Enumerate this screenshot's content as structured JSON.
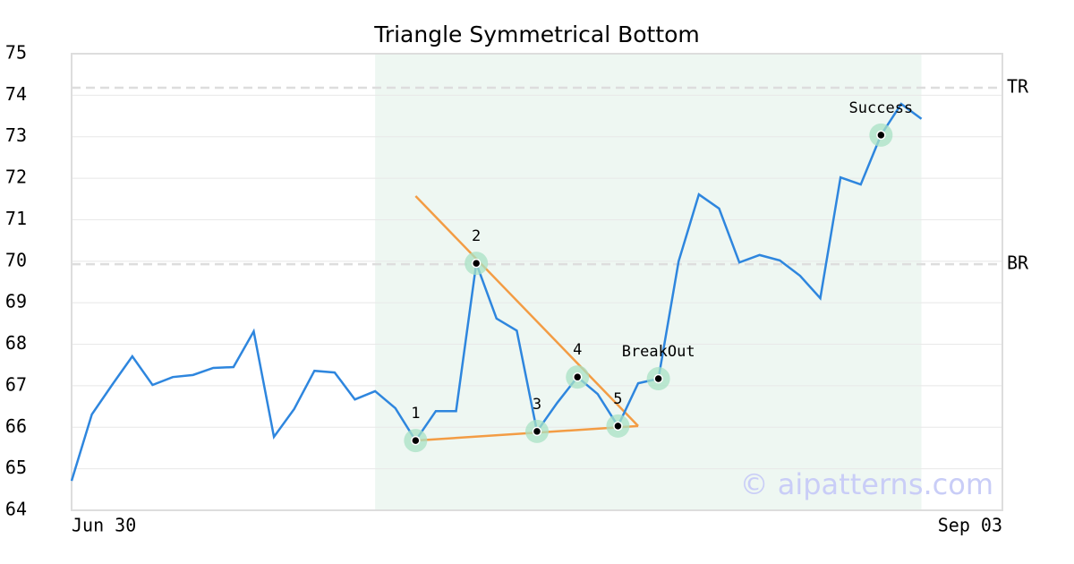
{
  "chart_data": {
    "type": "line",
    "title": "Triangle Symmetrical Bottom",
    "x": [
      0,
      1,
      2,
      3,
      4,
      5,
      6,
      7,
      8,
      9,
      10,
      11,
      12,
      13,
      14,
      15,
      16,
      17,
      18,
      19,
      20,
      21,
      22,
      23,
      24,
      25,
      26,
      27,
      28,
      29,
      30,
      31,
      32,
      33,
      34,
      35,
      36,
      37,
      38,
      39,
      40,
      41,
      42
    ],
    "values": [
      64.71,
      66.31,
      67.02,
      67.71,
      67.02,
      67.21,
      67.26,
      67.43,
      67.45,
      68.31,
      65.77,
      66.44,
      67.36,
      67.32,
      66.67,
      66.87,
      66.46,
      65.68,
      66.39,
      66.39,
      69.95,
      68.62,
      68.33,
      65.9,
      66.59,
      67.21,
      66.8,
      66.03,
      67.06,
      67.17,
      70.0,
      71.61,
      71.27,
      69.97,
      70.15,
      70.02,
      69.65,
      69.11,
      72.02,
      71.85,
      73.04,
      73.79,
      73.43
    ],
    "color": "#2e86de",
    "xlim": [
      0,
      46
    ],
    "xticks": [
      {
        "value": 0,
        "label": "Jun 30"
      },
      {
        "value": 46,
        "label": "Sep 03"
      }
    ],
    "ylim": [
      64,
      75
    ],
    "yticks": [
      64,
      65,
      66,
      67,
      68,
      69,
      70,
      71,
      72,
      73,
      74,
      75
    ],
    "grid": true,
    "highlight_range": [
      15,
      42
    ],
    "highlight_color": "#eef7f2",
    "levels": [
      {
        "label": "TR",
        "value": 74.18
      },
      {
        "label": "BR",
        "value": 69.93
      }
    ],
    "trendlines": [
      {
        "x": [
          17,
          28
        ],
        "y": [
          71.57,
          66.03
        ],
        "color": "#f39c44"
      },
      {
        "x": [
          17,
          28
        ],
        "y": [
          65.68,
          66.03
        ],
        "color": "#f39c44"
      }
    ],
    "markers": [
      {
        "label": "1",
        "x": 17
      },
      {
        "label": "2",
        "x": 20
      },
      {
        "label": "3",
        "x": 23
      },
      {
        "label": "4",
        "x": 25
      },
      {
        "label": "5",
        "x": 27
      },
      {
        "label": "BreakOut",
        "x": 29
      },
      {
        "label": "Success",
        "x": 40
      }
    ],
    "watermark": "© aipatterns.com"
  }
}
